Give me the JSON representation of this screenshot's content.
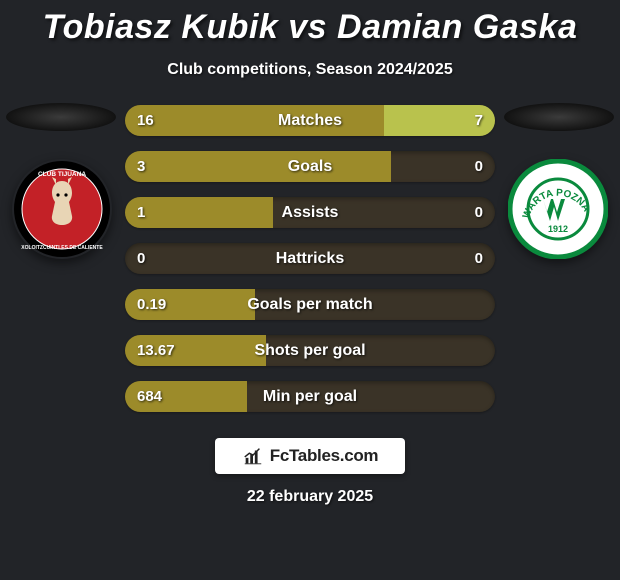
{
  "title": "Tobiasz Kubik vs Damian Gaska",
  "subtitle": "Club competitions, Season 2024/2025",
  "date": "22 february 2025",
  "branding_text": "FcTables.com",
  "colors": {
    "background": "#222428",
    "platform_gradient_top": "#3b3b3b",
    "platform_gradient_bottom": "#0c0c0c",
    "bar_bg": "#3a3327",
    "bar_left_fill": "#9c8b2a",
    "bar_right_fill": "#b9c24d",
    "text": "#ffffff"
  },
  "club_left": {
    "name": "Club Tijuana",
    "badge_bg": "#c32127",
    "badge_ring": "#000000",
    "badge_text": "#ffffff"
  },
  "club_right": {
    "name": "Warta Poznan",
    "badge_bg": "#ffffff",
    "badge_accent": "#0a8a3d",
    "badge_year": "1912"
  },
  "stats": [
    {
      "label": "Matches",
      "left_val": "16",
      "right_val": "7",
      "left_pct": 70,
      "right_pct": 30
    },
    {
      "label": "Goals",
      "left_val": "3",
      "right_val": "0",
      "left_pct": 72,
      "right_pct": 0
    },
    {
      "label": "Assists",
      "left_val": "1",
      "right_val": "0",
      "left_pct": 40,
      "right_pct": 0
    },
    {
      "label": "Hattricks",
      "left_val": "0",
      "right_val": "0",
      "left_pct": 0,
      "right_pct": 0
    },
    {
      "label": "Goals per match",
      "left_val": "0.19",
      "right_val": "",
      "left_pct": 35,
      "right_pct": 0
    },
    {
      "label": "Shots per goal",
      "left_val": "13.67",
      "right_val": "",
      "left_pct": 38,
      "right_pct": 0
    },
    {
      "label": "Min per goal",
      "left_val": "684",
      "right_val": "",
      "left_pct": 33,
      "right_pct": 0
    }
  ]
}
